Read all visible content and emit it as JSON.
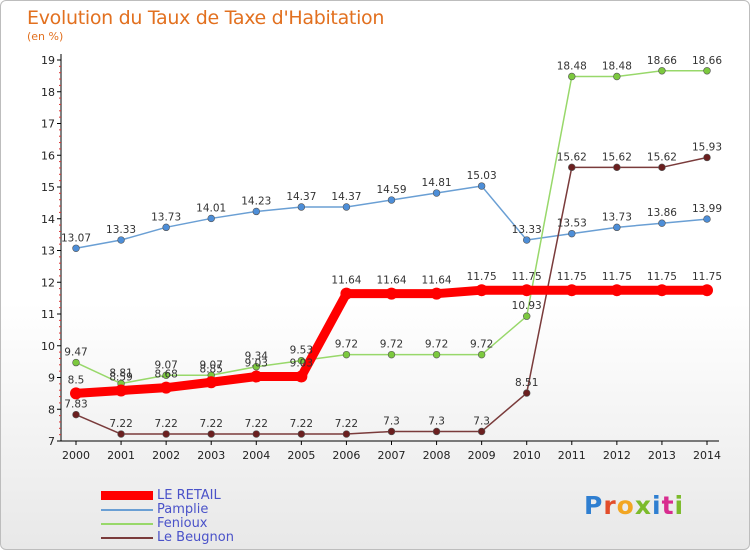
{
  "header": {
    "title": "Evolution du Taux de Taxe d'Habitation",
    "subtitle": "(en %)"
  },
  "logo": {
    "text": "Proxiti",
    "letter_colors": [
      "#2f7fd1",
      "#e24d2b",
      "#f2a623",
      "#7cbb2b",
      "#2f7fd1",
      "#d82c8f",
      "#7cbb2b"
    ]
  },
  "chart_data": {
    "type": "line",
    "title": "Evolution du Taux de Taxe d'Habitation",
    "subtitle": "(en %)",
    "xlabel": "",
    "ylabel": "",
    "x": [
      2000,
      2001,
      2002,
      2003,
      2004,
      2005,
      2006,
      2007,
      2008,
      2009,
      2010,
      2011,
      2012,
      2013,
      2014
    ],
    "ylim": [
      7,
      19
    ],
    "yticks": [
      7,
      8,
      9,
      10,
      11,
      12,
      13,
      14,
      15,
      16,
      17,
      18,
      19
    ],
    "grid": false,
    "legend_position": "bottom-left",
    "series": [
      {
        "name": "LE RETAIL",
        "color": "#ff0000",
        "marker_color": "#ff0000",
        "emphasis": true,
        "values": [
          8.5,
          8.59,
          8.68,
          8.85,
          9.03,
          9.03,
          11.64,
          11.64,
          11.64,
          11.75,
          11.75,
          11.75,
          11.75,
          11.75,
          11.75
        ],
        "labels": [
          "8.5",
          "8.59",
          "8.68",
          "8.85",
          "9.03",
          "9.03",
          "11.64",
          "11.64",
          "11.64",
          "11.75",
          "11.75",
          "11.75",
          "11.75",
          "11.75",
          "11.75"
        ]
      },
      {
        "name": "Pamplie",
        "color": "#6a9fd4",
        "marker_color": "#4d8ed8",
        "values": [
          13.07,
          13.33,
          13.73,
          14.01,
          14.23,
          14.37,
          14.37,
          14.59,
          14.81,
          15.03,
          13.33,
          13.53,
          13.73,
          13.86,
          13.99
        ],
        "labels": [
          "13.07",
          "13.33",
          "13.73",
          "14.01",
          "14.23",
          "14.37",
          "14.37",
          "14.59",
          "14.81",
          "15.03",
          "13.33",
          "13.53",
          "13.73",
          "13.86",
          "13.99"
        ]
      },
      {
        "name": "Fenioux",
        "color": "#98d86a",
        "marker_color": "#7cc93e",
        "values": [
          9.47,
          8.81,
          9.07,
          9.07,
          9.34,
          9.53,
          9.72,
          9.72,
          9.72,
          9.72,
          10.93,
          18.48,
          18.48,
          18.66,
          18.66
        ],
        "labels": [
          "9.47",
          "8.81",
          "9.07",
          "9.07",
          "9.34",
          "9.53",
          "9.72",
          "9.72",
          "9.72",
          "9.72",
          "10.93",
          "18.48",
          "18.48",
          "18.66",
          "18.66"
        ]
      },
      {
        "name": "Le Beugnon",
        "color": "#7a3b3b",
        "marker_color": "#6b1f1f",
        "values": [
          7.83,
          7.22,
          7.22,
          7.22,
          7.22,
          7.22,
          7.22,
          7.3,
          7.3,
          7.3,
          8.51,
          15.62,
          15.62,
          15.62,
          15.93
        ],
        "labels": [
          "7.83",
          "7.22",
          "7.22",
          "7.22",
          "7.22",
          "7.22",
          "7.22",
          "7.3",
          "7.3",
          "7.3",
          "8.51",
          "15.62",
          "15.62",
          "15.62",
          "15.93"
        ]
      }
    ]
  }
}
